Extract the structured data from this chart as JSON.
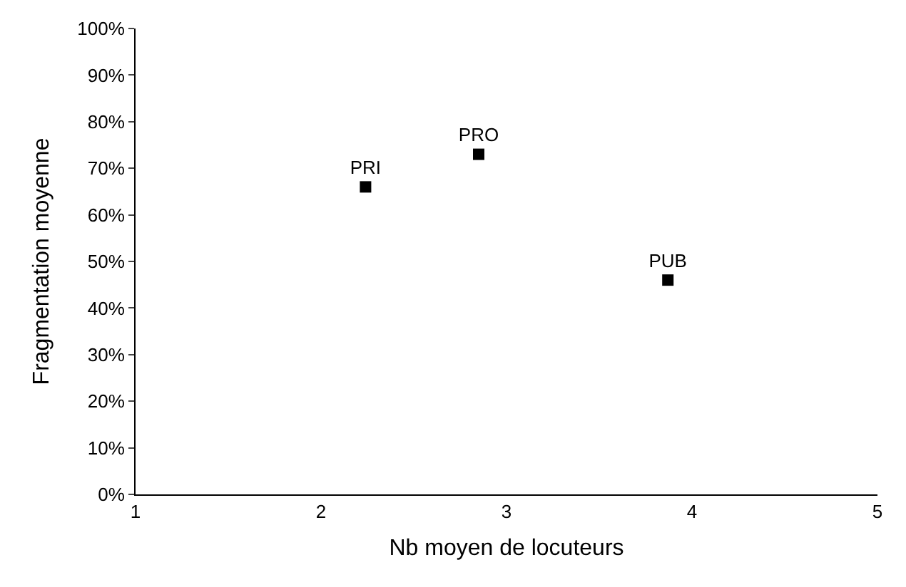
{
  "chart_data": {
    "type": "scatter",
    "xlabel": "Nb moyen de locuteurs",
    "ylabel": "Fragmentation moyenne",
    "xlim": [
      1,
      5
    ],
    "xticks": [
      1,
      2,
      3,
      4,
      5
    ],
    "ylim": [
      0,
      1
    ],
    "yticks": [
      {
        "value": 0,
        "label": "0%"
      },
      {
        "value": 0.1,
        "label": "10%"
      },
      {
        "value": 0.2,
        "label": "20%"
      },
      {
        "value": 0.3,
        "label": "30%"
      },
      {
        "value": 0.4,
        "label": "40%"
      },
      {
        "value": 0.5,
        "label": "50%"
      },
      {
        "value": 0.6,
        "label": "60%"
      },
      {
        "value": 0.7,
        "label": "70%"
      },
      {
        "value": 0.8,
        "label": "80%"
      },
      {
        "value": 0.9,
        "label": "90%"
      },
      {
        "value": 1,
        "label": "100%"
      }
    ],
    "legend": false,
    "marker": "square",
    "series": [
      {
        "name": "PRI",
        "color": "#000000",
        "x": [
          2.24
        ],
        "values": [
          0.66
        ]
      },
      {
        "name": "PRO",
        "color": "#000000",
        "x": [
          2.85
        ],
        "values": [
          0.73
        ]
      },
      {
        "name": "PUB",
        "color": "#000000",
        "x": [
          3.87
        ],
        "values": [
          0.46
        ]
      }
    ]
  }
}
